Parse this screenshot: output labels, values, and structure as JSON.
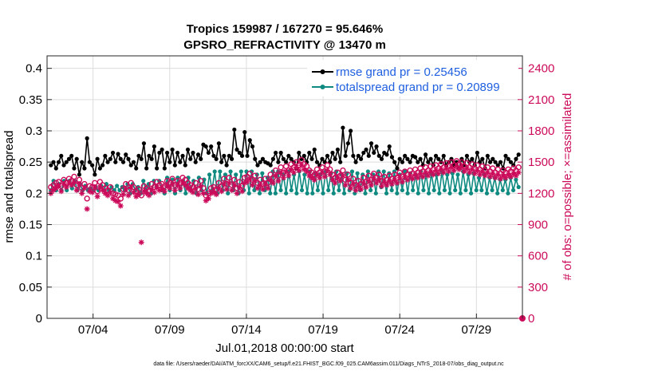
{
  "chart_data": {
    "type": "line",
    "title_line1": "Tropics 159987 / 167270 = 95.646%",
    "title_line2": "GPSRO_REFRACTIVITY @ 13470 m",
    "xlabel": "Jul.01,2018 00:00:00 start",
    "ylabel_left": "rmse and totalspread",
    "ylabel_right": "# of obs: o=possible; ×=assimilated",
    "footnote": "data file: /Users/raeder/DAI/ATM_forcXX/CAM6_setup/f.e21.FHIST_BGC.f09_025.CAM6assim.011/Diags_NTrS_2018-07/obs_diag_output.nc",
    "x_range_days": [
      1.0,
      32.0
    ],
    "x_ticks": [
      {
        "day": 4,
        "label": "07/04"
      },
      {
        "day": 9,
        "label": "07/09"
      },
      {
        "day": 14,
        "label": "07/14"
      },
      {
        "day": 19,
        "label": "07/19"
      },
      {
        "day": 24,
        "label": "07/24"
      },
      {
        "day": 29,
        "label": "07/29"
      }
    ],
    "ylim_left": [
      0,
      0.42
    ],
    "yticks_left": [
      "0",
      "0.05",
      "0.1",
      "0.15",
      "0.2",
      "0.25",
      "0.3",
      "0.35",
      "0.4"
    ],
    "yticks_left_values": [
      0,
      0.05,
      0.1,
      0.15,
      0.2,
      0.25,
      0.3,
      0.35,
      0.4
    ],
    "ylim_right": [
      0,
      2520
    ],
    "yticks_right": [
      "0",
      "300",
      "600",
      "900",
      "1200",
      "1500",
      "1800",
      "2100",
      "2400"
    ],
    "yticks_right_values": [
      0,
      300,
      600,
      900,
      1200,
      1500,
      1800,
      2100,
      2400
    ],
    "legend": {
      "placement": "top-right",
      "entries": [
        "rmse grand pr = 0.25456",
        "totalspread grand pr = 0.20899"
      ]
    },
    "colors": {
      "rmse": "#000000",
      "spread": "#0e8a80",
      "obs": "#cc0a5a",
      "legend_text": "#1f5fe0"
    },
    "series": [
      {
        "name": "rmse",
        "axis": "left",
        "values": [
          0.245,
          0.25,
          0.24,
          0.25,
          0.26,
          0.245,
          0.25,
          0.255,
          0.26,
          0.24,
          0.255,
          0.23,
          0.25,
          0.24,
          0.288,
          0.25,
          0.245,
          0.23,
          0.255,
          0.24,
          0.245,
          0.26,
          0.25,
          0.255,
          0.265,
          0.25,
          0.263,
          0.255,
          0.25,
          0.262,
          0.255,
          0.245,
          0.25,
          0.24,
          0.26,
          0.255,
          0.28,
          0.24,
          0.26,
          0.255,
          0.275,
          0.24,
          0.265,
          0.27,
          0.24,
          0.265,
          0.25,
          0.27,
          0.245,
          0.265,
          0.25,
          0.26,
          0.245,
          0.27,
          0.255,
          0.265,
          0.25,
          0.262,
          0.255,
          0.278,
          0.275,
          0.265,
          0.275,
          0.26,
          0.255,
          0.28,
          0.25,
          0.26,
          0.245,
          0.26,
          0.255,
          0.302,
          0.27,
          0.265,
          0.26,
          0.298,
          0.26,
          0.285,
          0.275,
          0.255,
          0.245,
          0.25,
          0.255,
          0.25,
          0.248,
          0.245,
          0.255,
          0.265,
          0.25,
          0.265,
          0.255,
          0.25,
          0.26,
          0.255,
          0.25,
          0.24,
          0.265,
          0.255,
          0.26,
          0.25,
          0.265,
          0.255,
          0.27,
          0.25,
          0.245,
          0.255,
          0.25,
          0.26,
          0.25,
          0.265,
          0.255,
          0.27,
          0.25,
          0.305,
          0.26,
          0.28,
          0.3,
          0.26,
          0.25,
          0.26,
          0.255,
          0.265,
          0.27,
          0.26,
          0.28,
          0.265,
          0.275,
          0.26,
          0.255,
          0.265,
          0.262,
          0.275,
          0.258,
          0.25,
          0.24,
          0.255,
          0.25,
          0.26,
          0.255,
          0.25,
          0.26,
          0.258,
          0.25,
          0.255,
          0.245,
          0.262,
          0.25,
          0.255,
          0.245,
          0.26,
          0.255,
          0.25,
          0.26,
          0.245,
          0.25,
          0.255,
          0.245,
          0.25,
          0.24,
          0.255,
          0.245,
          0.26,
          0.25,
          0.255,
          0.245,
          0.265,
          0.25,
          0.255,
          0.24,
          0.26,
          0.25,
          0.255,
          0.25,
          0.245,
          0.25,
          0.24,
          0.26,
          0.255,
          0.25,
          0.245,
          0.255,
          0.262
        ],
        "markers": "filled-circle"
      },
      {
        "name": "totalspread",
        "axis": "left",
        "values": [
          0.205,
          0.22,
          0.205,
          0.215,
          0.205,
          0.22,
          0.205,
          0.22,
          0.208,
          0.22,
          0.205,
          0.215,
          0.205,
          0.212,
          0.205,
          0.208,
          0.205,
          0.21,
          0.205,
          0.212,
          0.205,
          0.215,
          0.205,
          0.21,
          0.205,
          0.212,
          0.205,
          0.21,
          0.205,
          0.215,
          0.2,
          0.215,
          0.205,
          0.21,
          0.2,
          0.22,
          0.205,
          0.215,
          0.2,
          0.22,
          0.21,
          0.22,
          0.205,
          0.2,
          0.225,
          0.205,
          0.222,
          0.2,
          0.225,
          0.205,
          0.22,
          0.2,
          0.225,
          0.205,
          0.22,
          0.2,
          0.225,
          0.205,
          0.222,
          0.2,
          0.23,
          0.205,
          0.235,
          0.2,
          0.235,
          0.205,
          0.23,
          0.2,
          0.235,
          0.205,
          0.23,
          0.2,
          0.235,
          0.205,
          0.235,
          0.2,
          0.235,
          0.205,
          0.23,
          0.2,
          0.232,
          0.205,
          0.225,
          0.2,
          0.235,
          0.2,
          0.235,
          0.205,
          0.23,
          0.2,
          0.235,
          0.205,
          0.23,
          0.2,
          0.235,
          0.205,
          0.23,
          0.2,
          0.235,
          0.2,
          0.232,
          0.205,
          0.23,
          0.2,
          0.235,
          0.205,
          0.232,
          0.2,
          0.235,
          0.205,
          0.23,
          0.2,
          0.232,
          0.205,
          0.235,
          0.2,
          0.232,
          0.205,
          0.23,
          0.2,
          0.235,
          0.205,
          0.23,
          0.2,
          0.235,
          0.21,
          0.235,
          0.2,
          0.232,
          0.205,
          0.235,
          0.2,
          0.23,
          0.205,
          0.235,
          0.2,
          0.232,
          0.205,
          0.23,
          0.2,
          0.235,
          0.205,
          0.23,
          0.2,
          0.232,
          0.205,
          0.23,
          0.2,
          0.235,
          0.205,
          0.23,
          0.2,
          0.232,
          0.205,
          0.23,
          0.2,
          0.235,
          0.205,
          0.23,
          0.2,
          0.232,
          0.205,
          0.225,
          0.205,
          0.23,
          0.2,
          0.225,
          0.205,
          0.225,
          0.2,
          0.222,
          0.205,
          0.222,
          0.2,
          0.225,
          0.205,
          0.222,
          0.21
        ],
        "markers": "filled-circle"
      },
      {
        "name": "obs_possible",
        "axis": "right",
        "values": [
          1260,
          1280,
          1300,
          1310,
          1270,
          1330,
          1300,
          1340,
          1320,
          1360,
          1280,
          1330,
          1250,
          1290,
          1150,
          1270,
          1260,
          1300,
          1220,
          1310,
          1280,
          1250,
          1230,
          1260,
          1200,
          1190,
          1180,
          1150,
          1240,
          1290,
          1230,
          1300,
          1260,
          1220,
          1240,
          1180,
          1270,
          1250,
          1230,
          1290,
          1260,
          1310,
          1280,
          1290,
          1270,
          1320,
          1300,
          1340,
          1280,
          1320,
          1300,
          1350,
          1330,
          1300,
          1280,
          1260,
          1300,
          1240,
          1320,
          1250,
          1180,
          1200,
          1250,
          1260,
          1240,
          1300,
          1270,
          1340,
          1290,
          1350,
          1280,
          1330,
          1250,
          1310,
          1270,
          1350,
          1360,
          1390,
          1330,
          1370,
          1300,
          1330,
          1290,
          1340,
          1300,
          1380,
          1350,
          1420,
          1370,
          1450,
          1400,
          1460,
          1420,
          1480,
          1450,
          1500,
          1470,
          1520,
          1480,
          1460,
          1420,
          1400,
          1380,
          1430,
          1400,
          1450,
          1410,
          1470,
          1430,
          1380,
          1350,
          1400,
          1370,
          1420,
          1330,
          1380,
          1300,
          1340,
          1280,
          1320,
          1290,
          1350,
          1310,
          1370,
          1330,
          1390,
          1350,
          1380,
          1320,
          1360,
          1330,
          1370,
          1340,
          1380,
          1350,
          1400,
          1360,
          1410,
          1380,
          1420,
          1390,
          1430,
          1400,
          1440,
          1410,
          1450,
          1420,
          1460,
          1430,
          1470,
          1440,
          1480,
          1450,
          1490,
          1460,
          1500,
          1470,
          1510,
          1480,
          1500,
          1460,
          1490,
          1450,
          1480,
          1440,
          1470,
          1430,
          1460,
          1420,
          1450,
          1410,
          1440,
          1400,
          1430,
          1390,
          1420,
          1400,
          1430,
          1410,
          1440,
          1420,
          1450
        ],
        "markers": "open-circle"
      },
      {
        "name": "obs_assimilated",
        "axis": "right",
        "values": [
          1200,
          1230,
          1250,
          1270,
          1220,
          1290,
          1260,
          1300,
          1280,
          1310,
          1230,
          1290,
          1200,
          1250,
          1050,
          1220,
          1210,
          1260,
          1170,
          1260,
          1230,
          1200,
          1180,
          1210,
          1150,
          1130,
          1120,
          1080,
          1190,
          1240,
          1180,
          1260,
          1210,
          1170,
          1190,
          730,
          1220,
          1200,
          1180,
          1240,
          1210,
          1260,
          1230,
          1240,
          1220,
          1270,
          1250,
          1290,
          1230,
          1280,
          1250,
          1300,
          1280,
          1250,
          1230,
          1210,
          1250,
          1190,
          1270,
          1200,
          1130,
          1150,
          1200,
          1210,
          1190,
          1250,
          1220,
          1290,
          1240,
          1300,
          1230,
          1280,
          1200,
          1260,
          1220,
          1300,
          1310,
          1340,
          1280,
          1320,
          1250,
          1280,
          1240,
          1290,
          1250,
          1330,
          1300,
          1370,
          1320,
          1400,
          1350,
          1410,
          1370,
          1430,
          1400,
          1450,
          1420,
          1470,
          1430,
          1410,
          1370,
          1350,
          1330,
          1380,
          1350,
          1400,
          1360,
          1420,
          1380,
          1330,
          1300,
          1350,
          1320,
          1370,
          1280,
          1330,
          1250,
          1290,
          1230,
          1270,
          1240,
          1300,
          1260,
          1320,
          1280,
          1340,
          1300,
          1330,
          1270,
          1310,
          1280,
          1320,
          1290,
          1330,
          1300,
          1350,
          1310,
          1360,
          1330,
          1370,
          1340,
          1380,
          1350,
          1390,
          1360,
          1400,
          1370,
          1410,
          1380,
          1420,
          1390,
          1430,
          1400,
          1440,
          1410,
          1450,
          1420,
          1460,
          1430,
          1450,
          1410,
          1440,
          1400,
          1430,
          1390,
          1420,
          1380,
          1410,
          1370,
          1400,
          1360,
          1390,
          1350,
          1380,
          1340,
          1370,
          1350,
          1380,
          1360,
          1390,
          1370,
          1400
        ],
        "markers": "asterisk"
      }
    ]
  }
}
